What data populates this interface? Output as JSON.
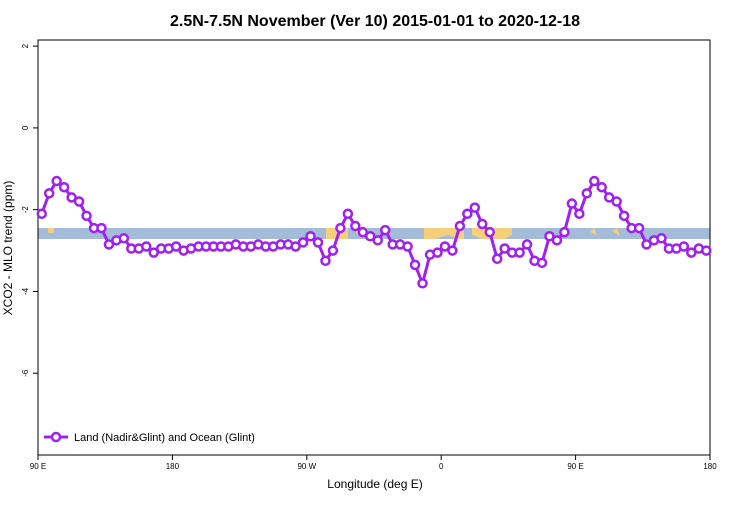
{
  "chart_data": {
    "type": "line",
    "title": "2.5N-7.5N November (Ver 10)   2015-01-01 to 2020-12-18",
    "xlabel": "Longitude (deg E)",
    "ylabel": "XCO2 - MLO trend (ppm)",
    "x": [
      92.5,
      97.5,
      102.5,
      107.5,
      112.5,
      117.5,
      122.5,
      127.5,
      132.5,
      137.5,
      142.5,
      147.5,
      152.5,
      157.5,
      162.5,
      167.5,
      172.5,
      177.5,
      182.5,
      187.5,
      192.5,
      197.5,
      202.5,
      207.5,
      212.5,
      217.5,
      222.5,
      227.5,
      232.5,
      237.5,
      242.5,
      247.5,
      252.5,
      257.5,
      262.5,
      267.5,
      272.5,
      277.5,
      282.5,
      287.5,
      292.5,
      297.5,
      302.5,
      307.5,
      312.5,
      317.5,
      322.5,
      327.5,
      332.5,
      337.5,
      342.5,
      347.5,
      352.5,
      357.5,
      362.5,
      367.5,
      372.5,
      377.5,
      382.5,
      387.5,
      392.5,
      397.5,
      402.5,
      407.5,
      412.5,
      417.5,
      422.5,
      427.5,
      432.5,
      437.5,
      442.5,
      447.5,
      452.5,
      457.5,
      462.5,
      467.5,
      472.5,
      477.5,
      482.5,
      487.5,
      492.5,
      497.5,
      502.5,
      507.5,
      512.5,
      517.5,
      522.5,
      527.5,
      532.5,
      537.5
    ],
    "series": [
      {
        "name": "Land (Nadir&Glint) and Ocean (Glint)",
        "color": "#a020f0",
        "values": [
          -2.1,
          -1.6,
          -1.3,
          -1.45,
          -1.7,
          -1.8,
          -2.15,
          -2.45,
          -2.45,
          -2.85,
          -2.75,
          -2.7,
          -2.95,
          -2.95,
          -2.9,
          -3.05,
          -2.95,
          -2.95,
          -2.9,
          -3.0,
          -2.95,
          -2.9,
          -2.9,
          -2.9,
          -2.9,
          -2.9,
          -2.85,
          -2.9,
          -2.9,
          -2.85,
          -2.9,
          -2.9,
          -2.85,
          -2.85,
          -2.9,
          -2.8,
          -2.65,
          -2.8,
          -3.25,
          -3.0,
          -2.45,
          -2.1,
          -2.4,
          -2.55,
          -2.65,
          -2.75,
          -2.5,
          -2.85,
          -2.85,
          -2.9,
          -3.35,
          -3.8,
          -3.1,
          -3.05,
          -2.9,
          -3.0,
          -2.4,
          -2.1,
          -1.95,
          -2.35,
          -2.55,
          -3.2,
          -2.95,
          -3.05,
          -3.05,
          -2.85,
          -3.25,
          -3.3,
          -2.65,
          -2.75,
          -2.55,
          -1.85,
          -2.1,
          -1.6,
          -1.3,
          -1.45,
          -1.7,
          -1.8,
          -2.15,
          -2.45,
          -2.45,
          -2.85,
          -2.75,
          -2.7,
          -2.95,
          -2.95,
          -2.9,
          -3.05,
          -2.95,
          -3.0
        ]
      }
    ],
    "xlim": [
      90,
      540
    ],
    "xticks": [
      {
        "value": 90,
        "label": "90 E"
      },
      180,
      {
        "value": 270,
        "label": "90 W"
      },
      {
        "value": 360,
        "label": "0"
      },
      {
        "value": 450,
        "label": "90 E"
      },
      {
        "value": 540,
        "label": "180"
      }
    ],
    "ylim": [
      -8,
      2.15
    ],
    "yticks": [
      2,
      0,
      -2,
      -4,
      -6
    ],
    "legend": "bottom-left"
  }
}
